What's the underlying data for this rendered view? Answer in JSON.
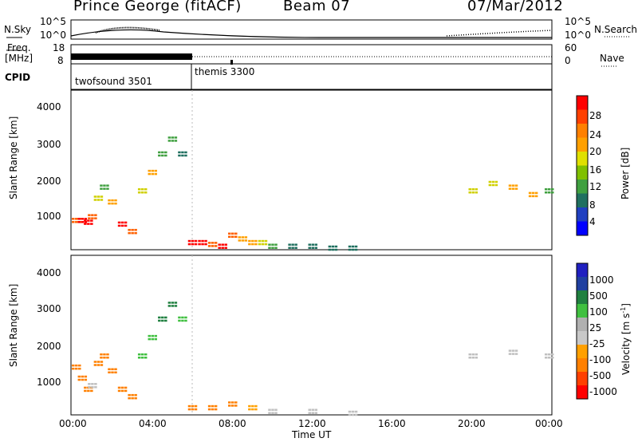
{
  "header": {
    "station": "Prince George (fitACF)",
    "beam": "Beam 07",
    "date": "07/Mar/2012"
  },
  "top_panel": {
    "nsky_label": "N.Sky",
    "nsearch_label": "N.Search",
    "freq_label_1": "Freq.",
    "freq_label_2": "[MHz]",
    "nave_label": "Nave",
    "cpid_label": "CPID",
    "left_ticks": {
      "t1": "10^5",
      "t2": "10^0",
      "f1": "18",
      "f2": "8"
    },
    "right_ticks": {
      "t1": "10^5",
      "t2": "10^0",
      "f1": "60",
      "f2": "0"
    },
    "cpid_segments": [
      {
        "label": "twofsound 3501",
        "start": 0.0,
        "end": 6.0
      },
      {
        "label": "themis 3300",
        "start": 6.0,
        "end": 24.0
      }
    ]
  },
  "axes": {
    "ylabel": "Slant Range [km]",
    "xlabel": "Time UT",
    "y_ticks": [
      "4000",
      "3000",
      "2000",
      "1000"
    ],
    "x_ticks": [
      "00:00",
      "04:00",
      "08:00",
      "12:00",
      "16:00",
      "20:00",
      "00:00"
    ]
  },
  "colorbars": {
    "power": {
      "label": "Power [dB]",
      "ticks": [
        "28",
        "24",
        "20",
        "16",
        "12",
        "8",
        "4"
      ],
      "colors": [
        "#ff0000",
        "#ff4000",
        "#ff8000",
        "#ffa000",
        "#e0e000",
        "#80c000",
        "#40a040",
        "#207060",
        "#2040c0",
        "#0000ff"
      ]
    },
    "velocity": {
      "label": "Velocity [m s",
      "label_sup": "-1",
      "label_end": "]",
      "ticks": [
        "1000",
        "500",
        "100",
        "25",
        "-25",
        "-100",
        "-500",
        "-1000"
      ],
      "colors": [
        "#2020c0",
        "#2040a0",
        "#208040",
        "#40c040",
        "#b0b0b0",
        "#c8c8c8",
        "#ffa000",
        "#ff8000",
        "#ff4000",
        "#ff0000"
      ]
    }
  },
  "chart_data": [
    {
      "type": "heatmap",
      "title": "Power",
      "xlabel": "Time UT",
      "ylabel": "Slant Range [km]",
      "xlim": [
        0,
        24
      ],
      "ylim": [
        180,
        4500
      ],
      "colorbar_label": "Power [dB]",
      "series": [
        {
          "x": [
            0.2,
            0.5,
            0.8,
            1.0,
            1.3,
            1.6,
            2.0,
            2.5,
            3.0,
            3.5,
            4.0,
            4.5,
            5.0,
            5.5,
            6.0,
            6.5,
            7.0,
            7.5,
            8.0,
            8.5,
            9.0,
            9.5,
            10.0,
            11.0,
            12.0,
            13.0,
            14.0,
            20.0,
            21.0,
            22.0,
            23.0,
            23.8
          ],
          "y": [
            1000,
            1000,
            950,
            1100,
            1600,
            1900,
            1500,
            900,
            700,
            1800,
            2300,
            2800,
            3200,
            2800,
            400,
            400,
            350,
            300,
            600,
            500,
            400,
            400,
            300,
            300,
            300,
            250,
            250,
            1800,
            2000,
            1900,
            1700,
            1800
          ],
          "value": [
            24,
            26,
            28,
            22,
            14,
            12,
            20,
            26,
            22,
            16,
            18,
            12,
            10,
            8,
            28,
            28,
            24,
            26,
            22,
            20,
            18,
            14,
            10,
            8,
            6,
            6,
            6,
            14,
            16,
            18,
            20,
            12
          ]
        }
      ]
    },
    {
      "type": "heatmap",
      "title": "Velocity",
      "xlabel": "Time UT",
      "ylabel": "Slant Range [km]",
      "xlim": [
        0,
        24
      ],
      "ylim": [
        180,
        4500
      ],
      "colorbar_label": "Velocity [m s-1]",
      "series": [
        {
          "x": [
            0.2,
            0.5,
            0.8,
            1.0,
            1.3,
            1.6,
            2.0,
            2.5,
            3.0,
            3.5,
            4.0,
            4.5,
            5.0,
            5.5,
            6.0,
            7.0,
            8.0,
            9.0,
            10.0,
            12.0,
            14.0,
            20.0,
            22.0,
            23.8
          ],
          "y": [
            1500,
            1200,
            900,
            1000,
            1600,
            1800,
            1400,
            900,
            700,
            1800,
            2300,
            2800,
            3200,
            2800,
            400,
            400,
            500,
            400,
            300,
            300,
            250,
            1800,
            1900,
            1800
          ],
          "value": [
            -200,
            -300,
            -100,
            0,
            -150,
            -200,
            -100,
            -300,
            -200,
            50,
            100,
            200,
            300,
            100,
            -200,
            -150,
            -100,
            -50,
            0,
            0,
            0,
            0,
            0,
            0
          ]
        }
      ]
    }
  ]
}
